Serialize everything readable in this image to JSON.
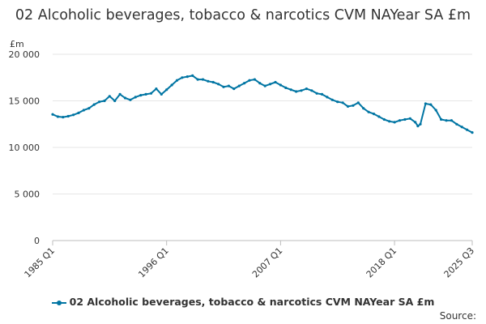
{
  "chart_data": {
    "type": "line",
    "title": "02 Alcoholic beverages, tobacco & narcotics CVM NAYear SA £m",
    "ylabel": "£m",
    "xlabel": "",
    "ylim": [
      0,
      20000
    ],
    "yticks": [
      0,
      5000,
      10000,
      15000,
      20000
    ],
    "ytick_labels": [
      "0",
      "5 000",
      "10 000",
      "15 000",
      "20 000"
    ],
    "xticks": [
      "1985 Q1",
      "1996 Q1",
      "2007 Q1",
      "2018 Q1",
      "2025 Q3"
    ],
    "grid": true,
    "legend_position": "bottom",
    "series": [
      {
        "name": "02 Alcoholic beverages, tobacco & narcotics CVM NAYear SA £m",
        "color": "#0075a3",
        "x": [
          "1985 Q1",
          "1985 Q3",
          "1986 Q1",
          "1986 Q3",
          "1987 Q1",
          "1987 Q3",
          "1988 Q1",
          "1988 Q3",
          "1989 Q1",
          "1989 Q3",
          "1990 Q1",
          "1990 Q3",
          "1991 Q1",
          "1991 Q3",
          "1992 Q1",
          "1992 Q3",
          "1993 Q1",
          "1993 Q3",
          "1994 Q1",
          "1994 Q3",
          "1995 Q1",
          "1995 Q3",
          "1996 Q1",
          "1996 Q3",
          "1997 Q1",
          "1997 Q3",
          "1998 Q1",
          "1998 Q3",
          "1999 Q1",
          "1999 Q3",
          "2000 Q1",
          "2000 Q3",
          "2001 Q1",
          "2001 Q3",
          "2002 Q1",
          "2002 Q3",
          "2003 Q1",
          "2003 Q3",
          "2004 Q1",
          "2004 Q3",
          "2005 Q1",
          "2005 Q3",
          "2006 Q1",
          "2006 Q3",
          "2007 Q1",
          "2007 Q3",
          "2008 Q1",
          "2008 Q3",
          "2009 Q1",
          "2009 Q3",
          "2010 Q1",
          "2010 Q3",
          "2011 Q1",
          "2011 Q3",
          "2012 Q1",
          "2012 Q3",
          "2013 Q1",
          "2013 Q3",
          "2014 Q1",
          "2014 Q3",
          "2015 Q1",
          "2015 Q3",
          "2016 Q1",
          "2016 Q3",
          "2017 Q1",
          "2017 Q3",
          "2018 Q1",
          "2018 Q3",
          "2019 Q1",
          "2019 Q3",
          "2020 Q1",
          "2020 Q2",
          "2020 Q3",
          "2021 Q1",
          "2021 Q3",
          "2022 Q1",
          "2022 Q3",
          "2023 Q1",
          "2023 Q3",
          "2024 Q1",
          "2024 Q3",
          "2025 Q1",
          "2025 Q3"
        ],
        "values": [
          13550,
          13300,
          13250,
          13350,
          13500,
          13700,
          14000,
          14200,
          14600,
          14900,
          15000,
          15500,
          15000,
          15700,
          15300,
          15100,
          15400,
          15600,
          15700,
          15800,
          16300,
          15700,
          16200,
          16700,
          17200,
          17500,
          17600,
          17700,
          17300,
          17300,
          17100,
          17000,
          16800,
          16500,
          16600,
          16300,
          16600,
          16900,
          17200,
          17300,
          16900,
          16600,
          16800,
          17000,
          16700,
          16400,
          16200,
          16000,
          16100,
          16300,
          16100,
          15800,
          15700,
          15400,
          15100,
          14900,
          14800,
          14400,
          14500,
          14800,
          14200,
          13800,
          13600,
          13300,
          13000,
          12800,
          12700,
          12900,
          13000,
          13100,
          12700,
          12300,
          12500,
          14700,
          14600,
          14000,
          13000,
          12900,
          12900,
          12500,
          12200,
          11900,
          11600
        ]
      }
    ],
    "source_label": "Source:"
  }
}
